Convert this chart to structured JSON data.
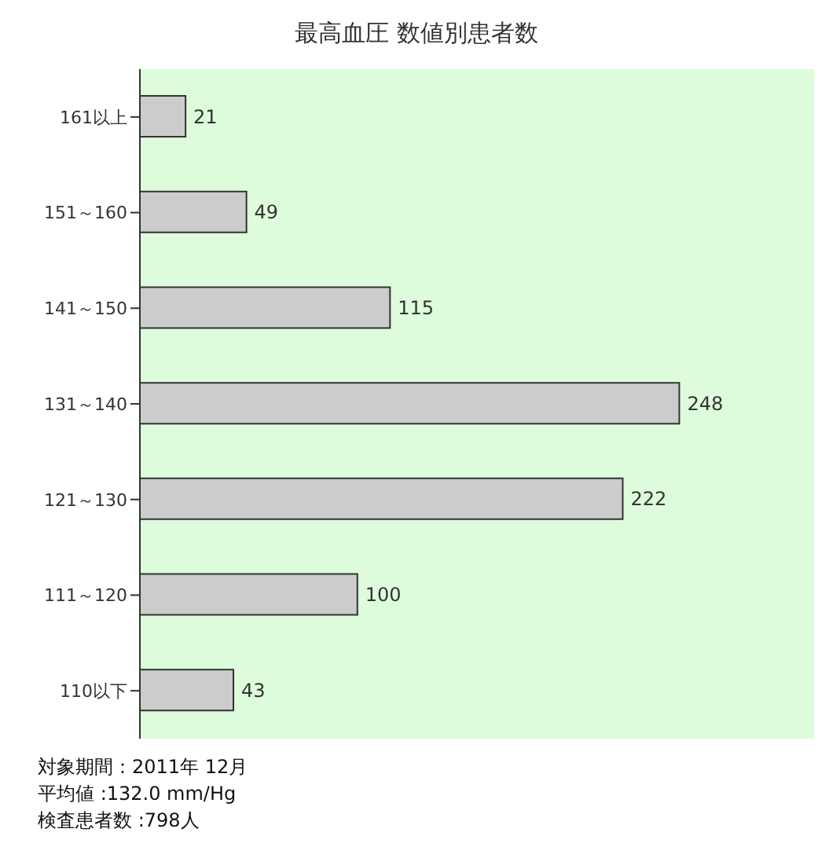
{
  "chart_data": {
    "type": "bar",
    "orientation": "horizontal",
    "title": "最高血圧 数値別患者数",
    "categories": [
      "161以上",
      "151～160",
      "141～150",
      "131～140",
      "121～130",
      "111～120",
      "110以下"
    ],
    "values": [
      21,
      49,
      115,
      248,
      222,
      100,
      43
    ],
    "color": "#cccccc",
    "data_labels": true,
    "grid": false,
    "legend": false,
    "annotations": [
      "対象期間：2011年 12月",
      "平均値 :132.0 mm/Hg",
      "検査患者数 :798人"
    ]
  }
}
